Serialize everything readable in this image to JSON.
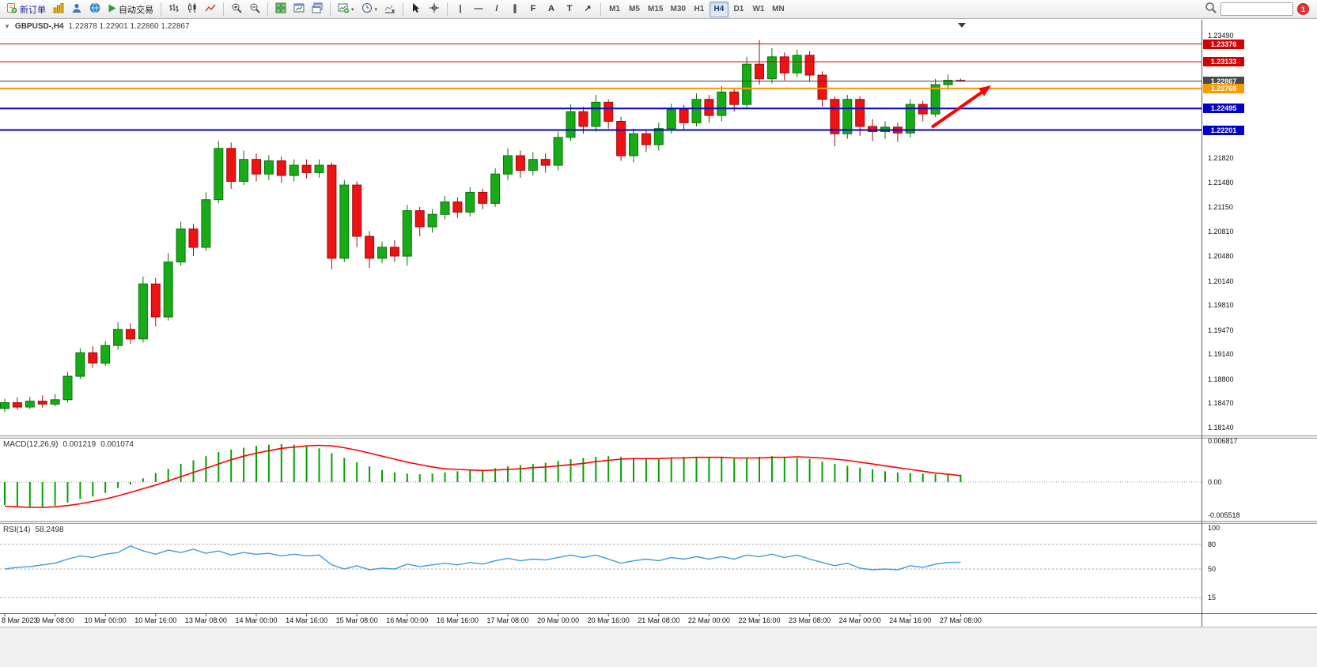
{
  "toolbar": {
    "new_order_label": "新订单",
    "auto_trading_label": "自动交易",
    "timeframes": [
      "M1",
      "M5",
      "M15",
      "M30",
      "H1",
      "H4",
      "D1",
      "W1",
      "MN"
    ],
    "active_timeframe": "H4",
    "notification_count": "1",
    "search_value": "",
    "draw_tools": [
      {
        "name": "vertical-line",
        "glyph": "|"
      },
      {
        "name": "horizontal-line",
        "glyph": "—"
      },
      {
        "name": "trendline",
        "glyph": "/"
      },
      {
        "name": "equidistant-channel",
        "glyph": "∥"
      },
      {
        "name": "fibonacci",
        "glyph": "F"
      },
      {
        "name": "text",
        "glyph": "A"
      },
      {
        "name": "label",
        "glyph": "T"
      },
      {
        "name": "arrows",
        "glyph": "↗"
      }
    ]
  },
  "colors": {
    "up": "#18ab18",
    "up_border": "#0b730b",
    "down": "#ee1212",
    "down_border": "#9c0d0d",
    "macd_hist": "#00a300",
    "macd_signal": "#ff0000",
    "rsi_line": "#3e9ade",
    "badge_text": "#ffffff"
  },
  "chart_data": {
    "type": "candlestick",
    "title": "GBPUSD-,H4",
    "ohlc_text": "1.22878 1.22901 1.22860 1.22867",
    "ylim": [
      1.1814,
      1.2349
    ],
    "price_axis_ticks": [
      "1.23490",
      "1.21820",
      "1.21480",
      "1.21150",
      "1.20810",
      "1.20480",
      "1.20140",
      "1.19810",
      "1.19470",
      "1.19140",
      "1.18800",
      "1.18470",
      "1.18140"
    ],
    "hlines": [
      {
        "price": 1.23376,
        "label": "1.23376",
        "color": "#d40000",
        "width": 1,
        "badge": "#d40000"
      },
      {
        "price": 1.23133,
        "label": "1.23133",
        "color": "#d40000",
        "width": 1,
        "badge": "#d40000"
      },
      {
        "price": 1.22867,
        "label": "1.22867",
        "color": "#3c3c3c",
        "width": 1,
        "badge": "#4a4a4a"
      },
      {
        "price": 1.22768,
        "label": "1.22768",
        "color": "#ff9900",
        "width": 2,
        "badge": "#ff9900"
      },
      {
        "price": 1.22495,
        "label": "1.22495",
        "color": "#0000cc",
        "width": 2,
        "badge": "#0000cc"
      },
      {
        "price": 1.22201,
        "label": "1.22201",
        "color": "#0000cc",
        "width": 2,
        "badge": "#0000cc"
      }
    ],
    "time_labels": [
      "8 Mar 2023",
      "9 Mar 08:00",
      "10 Mar 00:00",
      "10 Mar 16:00",
      "13 Mar 08:00",
      "14 Mar 00:00",
      "14 Mar 16:00",
      "15 Mar 08:00",
      "16 Mar 00:00",
      "16 Mar 16:00",
      "17 Mar 08:00",
      "20 Mar 00:00",
      "20 Mar 16:00",
      "21 Mar 08:00",
      "22 Mar 00:00",
      "22 Mar 16:00",
      "23 Mar 08:00",
      "24 Mar 00:00",
      "24 Mar 16:00",
      "27 Mar 08:00"
    ],
    "candles": [
      [
        1.184,
        1.1853,
        1.1835,
        1.1848
      ],
      [
        1.1848,
        1.1855,
        1.1838,
        1.1842
      ],
      [
        1.1842,
        1.1856,
        1.1839,
        1.185
      ],
      [
        1.185,
        1.1858,
        1.1841,
        1.1846
      ],
      [
        1.1846,
        1.186,
        1.1843,
        1.1852
      ],
      [
        1.1852,
        1.189,
        1.1848,
        1.1884
      ],
      [
        1.1884,
        1.1922,
        1.188,
        1.1916
      ],
      [
        1.1916,
        1.1925,
        1.1896,
        1.1902
      ],
      [
        1.1902,
        1.1932,
        1.1898,
        1.1926
      ],
      [
        1.1926,
        1.1958,
        1.192,
        1.1948
      ],
      [
        1.1948,
        1.1956,
        1.1928,
        1.1935
      ],
      [
        1.1935,
        1.202,
        1.193,
        1.201
      ],
      [
        1.201,
        1.2018,
        1.1952,
        1.1965
      ],
      [
        1.1965,
        1.2052,
        1.196,
        1.204
      ],
      [
        1.204,
        1.2095,
        1.2035,
        1.2085
      ],
      [
        1.2085,
        1.2092,
        1.2048,
        1.206
      ],
      [
        1.206,
        1.2135,
        1.2055,
        1.2125
      ],
      [
        1.2125,
        1.2205,
        1.212,
        1.2195
      ],
      [
        1.2195,
        1.2203,
        1.214,
        1.215
      ],
      [
        1.215,
        1.2192,
        1.2145,
        1.218
      ],
      [
        1.218,
        1.2188,
        1.215,
        1.216
      ],
      [
        1.216,
        1.2186,
        1.2152,
        1.2178
      ],
      [
        1.2178,
        1.2184,
        1.2148,
        1.2158
      ],
      [
        1.2158,
        1.218,
        1.215,
        1.2172
      ],
      [
        1.2172,
        1.218,
        1.2154,
        1.2162
      ],
      [
        1.2162,
        1.218,
        1.2155,
        1.2172
      ],
      [
        1.2172,
        1.2176,
        1.203,
        1.2045
      ],
      [
        1.2045,
        1.2152,
        1.204,
        1.2145
      ],
      [
        1.2145,
        1.215,
        1.206,
        1.2075
      ],
      [
        1.2075,
        1.2082,
        1.2032,
        1.2045
      ],
      [
        1.2045,
        1.2068,
        1.2038,
        1.206
      ],
      [
        1.206,
        1.207,
        1.204,
        1.2048
      ],
      [
        1.2048,
        1.2118,
        1.2035,
        1.211
      ],
      [
        1.211,
        1.2115,
        1.2075,
        1.2088
      ],
      [
        1.2088,
        1.2112,
        1.208,
        1.2105
      ],
      [
        1.2105,
        1.213,
        1.2098,
        1.2122
      ],
      [
        1.2122,
        1.2128,
        1.21,
        1.2108
      ],
      [
        1.2108,
        1.2142,
        1.2102,
        1.2135
      ],
      [
        1.2135,
        1.214,
        1.2112,
        1.212
      ],
      [
        1.212,
        1.2168,
        1.2115,
        1.216
      ],
      [
        1.216,
        1.2195,
        1.2152,
        1.2185
      ],
      [
        1.2185,
        1.2192,
        1.2155,
        1.2165
      ],
      [
        1.2165,
        1.219,
        1.2158,
        1.218
      ],
      [
        1.218,
        1.2188,
        1.2162,
        1.2172
      ],
      [
        1.2172,
        1.2218,
        1.2165,
        1.221
      ],
      [
        1.221,
        1.2255,
        1.2205,
        1.2245
      ],
      [
        1.2245,
        1.2252,
        1.2215,
        1.2225
      ],
      [
        1.2225,
        1.2268,
        1.2218,
        1.2258
      ],
      [
        1.2258,
        1.2262,
        1.2222,
        1.2232
      ],
      [
        1.2232,
        1.2238,
        1.2178,
        1.2185
      ],
      [
        1.2185,
        1.2222,
        1.2176,
        1.2215
      ],
      [
        1.2215,
        1.222,
        1.219,
        1.22
      ],
      [
        1.22,
        1.223,
        1.2192,
        1.2222
      ],
      [
        1.2222,
        1.2256,
        1.2215,
        1.2248
      ],
      [
        1.2248,
        1.2254,
        1.222,
        1.223
      ],
      [
        1.223,
        1.227,
        1.2225,
        1.2262
      ],
      [
        1.2262,
        1.2268,
        1.223,
        1.224
      ],
      [
        1.224,
        1.228,
        1.2232,
        1.2272
      ],
      [
        1.2272,
        1.2278,
        1.2245,
        1.2255
      ],
      [
        1.2255,
        1.232,
        1.225,
        1.231
      ],
      [
        1.231,
        1.2343,
        1.2282,
        1.229
      ],
      [
        1.229,
        1.2332,
        1.2284,
        1.232
      ],
      [
        1.232,
        1.2326,
        1.2288,
        1.2298
      ],
      [
        1.2298,
        1.233,
        1.2292,
        1.2322
      ],
      [
        1.2322,
        1.2328,
        1.2286,
        1.2295
      ],
      [
        1.2295,
        1.23,
        1.2252,
        1.2262
      ],
      [
        1.2262,
        1.2266,
        1.2198,
        1.2215
      ],
      [
        1.2215,
        1.2268,
        1.2208,
        1.2262
      ],
      [
        1.2262,
        1.2266,
        1.2212,
        1.2225
      ],
      [
        1.2225,
        1.2235,
        1.2205,
        1.2218
      ],
      [
        1.2218,
        1.2232,
        1.2208,
        1.2224
      ],
      [
        1.2224,
        1.223,
        1.2204,
        1.2216
      ],
      [
        1.2216,
        1.2262,
        1.221,
        1.2255
      ],
      [
        1.2255,
        1.226,
        1.2232,
        1.2242
      ],
      [
        1.2242,
        1.229,
        1.2238,
        1.2282
      ],
      [
        1.2282,
        1.2296,
        1.2275,
        1.2288
      ],
      [
        1.22878,
        1.22901,
        1.2286,
        1.22867
      ]
    ],
    "macd": {
      "name": "MACD(12,26,9)",
      "value_main": "0.001219",
      "value_signal": "0.001074",
      "axis_ticks": [
        {
          "label": "0.006817",
          "value": 0.006817
        },
        {
          "label": "0.00",
          "value": 0
        },
        {
          "label": "-0.005518",
          "value": -0.005518
        }
      ],
      "histogram": [
        -0.0038,
        -0.004,
        -0.0042,
        -0.0041,
        -0.0039,
        -0.0034,
        -0.0028,
        -0.0024,
        -0.0018,
        -0.001,
        -0.0004,
        0.0006,
        0.0015,
        0.0022,
        0.003,
        0.0036,
        0.0043,
        0.005,
        0.0054,
        0.0057,
        0.006,
        0.0062,
        0.0063,
        0.0062,
        0.006,
        0.0056,
        0.0048,
        0.004,
        0.0033,
        0.0026,
        0.002,
        0.0016,
        0.0014,
        0.0013,
        0.0014,
        0.0016,
        0.0018,
        0.002,
        0.0021,
        0.0023,
        0.0026,
        0.0028,
        0.003,
        0.0032,
        0.0035,
        0.0038,
        0.004,
        0.0042,
        0.0043,
        0.0042,
        0.004,
        0.0039,
        0.004,
        0.0041,
        0.0042,
        0.0042,
        0.0041,
        0.004,
        0.0039,
        0.004,
        0.0042,
        0.0043,
        0.0042,
        0.004,
        0.0038,
        0.0034,
        0.003,
        0.0027,
        0.0024,
        0.0021,
        0.0018,
        0.0016,
        0.0015,
        0.0014,
        0.0013,
        0.00125,
        0.001219
      ],
      "signal": [
        -0.004,
        -0.0041,
        -0.0042,
        -0.0042,
        -0.0041,
        -0.0039,
        -0.0036,
        -0.0032,
        -0.0028,
        -0.0023,
        -0.0017,
        -0.0011,
        -0.0005,
        0.0002,
        0.0009,
        0.0016,
        0.0023,
        0.003,
        0.0037,
        0.0043,
        0.0048,
        0.0052,
        0.0056,
        0.0058,
        0.006,
        0.0061,
        0.006,
        0.0057,
        0.0053,
        0.0048,
        0.0043,
        0.0038,
        0.0033,
        0.0029,
        0.0025,
        0.0022,
        0.0021,
        0.002,
        0.0019,
        0.002,
        0.0021,
        0.0022,
        0.0024,
        0.0025,
        0.0027,
        0.0029,
        0.0031,
        0.0034,
        0.0036,
        0.0038,
        0.0039,
        0.0039,
        0.0039,
        0.004,
        0.004,
        0.0041,
        0.0041,
        0.0041,
        0.004,
        0.004,
        0.004,
        0.0041,
        0.0041,
        0.0042,
        0.0041,
        0.004,
        0.0038,
        0.0036,
        0.0033,
        0.003,
        0.0027,
        0.0024,
        0.0021,
        0.0018,
        0.0015,
        0.0013,
        0.001074
      ]
    },
    "rsi": {
      "name": "RSI(14)",
      "value": "58.2498",
      "levels": [
        80,
        50,
        15
      ],
      "axis_ticks": [
        {
          "label": "100",
          "value": 100
        },
        {
          "label": "80",
          "value": 80
        },
        {
          "label": "50",
          "value": 50
        },
        {
          "label": "15",
          "value": 15
        }
      ],
      "values": [
        50,
        52,
        53,
        55,
        57,
        62,
        66,
        64,
        68,
        70,
        78,
        72,
        68,
        73,
        70,
        74,
        69,
        72,
        67,
        70,
        68,
        69,
        66,
        68,
        66,
        67,
        55,
        50,
        54,
        49,
        51,
        50,
        56,
        53,
        55,
        57,
        55,
        58,
        56,
        60,
        63,
        60,
        62,
        61,
        64,
        67,
        64,
        67,
        62,
        57,
        60,
        62,
        60,
        64,
        62,
        65,
        62,
        65,
        62,
        67,
        65,
        68,
        64,
        67,
        62,
        58,
        54,
        57,
        51,
        49,
        50,
        49,
        54,
        52,
        56,
        58,
        58.2498
      ]
    }
  }
}
